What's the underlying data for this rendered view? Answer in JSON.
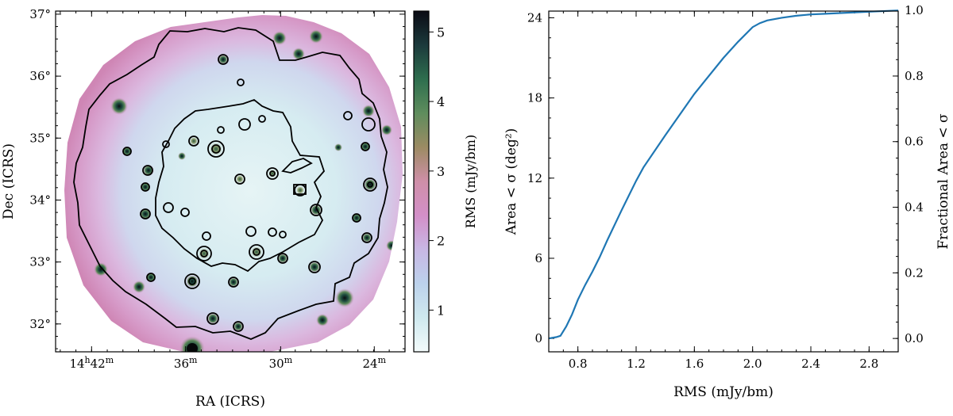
{
  "chart_data": [
    {
      "type": "heatmap",
      "description_role": "sky RMS noise map",
      "xlabel": "RA (ICRS)",
      "ylabel": "Dec (ICRS)",
      "xticks": [
        {
          "major": "14",
          "sup1": "h",
          "minor": "42",
          "sup2": "m"
        },
        {
          "major": "36",
          "sup2": "m"
        },
        {
          "major": "30",
          "sup2": "m"
        },
        {
          "major": "24",
          "sup2": "m"
        }
      ],
      "yticks": [
        "37°",
        "36°",
        "35°",
        "34°",
        "33°",
        "32°"
      ],
      "ylim": [
        31.55,
        37.05
      ],
      "colorbar": {
        "label": "RMS (mJy/bm)",
        "range": [
          0.4,
          5.3
        ],
        "ticks": [
          "1",
          "2",
          "3",
          "4",
          "5"
        ],
        "tick_values": [
          1,
          2,
          3,
          4,
          5
        ],
        "colormap": [
          "#f3fbfb",
          "#cfe9ef",
          "#bcd2ec",
          "#c8b7e4",
          "#d38fc8",
          "#cf8fa8",
          "#9c8b63",
          "#5f8d5d",
          "#2e6e4e",
          "#1c3a3c",
          "#0b0b14"
        ]
      },
      "colors": {
        "outer_ring": "#d594c4",
        "inner_field": "#dbeef2",
        "contour": "#000000",
        "source_core": "#0c1a1a"
      }
    },
    {
      "type": "line",
      "xlabel": "RMS (mJy/bm)",
      "ylabel": "Area < σ (deg²)",
      "ylabel_right": "Fractional Area < σ",
      "xlim": [
        0.6,
        3.0
      ],
      "ylim": [
        -1.0,
        24.5
      ],
      "xticks": [
        0.8,
        1.2,
        1.6,
        2.0,
        2.4,
        2.8
      ],
      "xtick_labels": [
        "0.8",
        "1.2",
        "1.6",
        "2.0",
        "2.4",
        "2.8"
      ],
      "yticks": [
        0,
        6,
        12,
        18,
        24
      ],
      "yticks_right": [
        "0.0",
        "0.2",
        "0.4",
        "0.6",
        "0.8",
        "1.0"
      ],
      "series": [
        {
          "name": "Area < σ",
          "color": "#1f77b4",
          "x": [
            0.6,
            0.65,
            0.68,
            0.72,
            0.76,
            0.8,
            0.85,
            0.9,
            0.95,
            1.0,
            1.1,
            1.2,
            1.25,
            1.4,
            1.6,
            1.8,
            1.9,
            2.0,
            2.05,
            2.1,
            2.2,
            2.3,
            2.4,
            2.5,
            2.6,
            2.8,
            3.0
          ],
          "y": [
            0.0,
            0.1,
            0.2,
            0.9,
            1.8,
            2.9,
            4.0,
            5.0,
            6.1,
            7.3,
            9.6,
            11.8,
            12.8,
            15.2,
            18.3,
            21.0,
            22.2,
            23.3,
            23.6,
            23.8,
            24.0,
            24.15,
            24.25,
            24.3,
            24.35,
            24.45,
            24.55
          ]
        }
      ]
    }
  ]
}
